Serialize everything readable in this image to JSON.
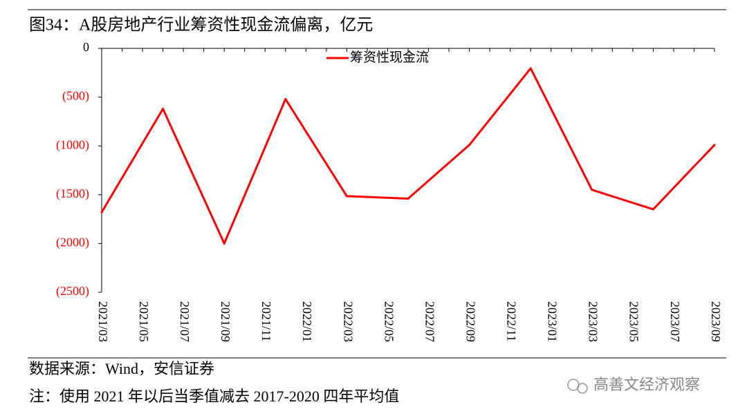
{
  "chart_data": {
    "type": "line",
    "title": "图34：A股房地产行业筹资性现金流偏离，亿元",
    "categories": [
      "2021/03",
      null,
      "2021/05",
      null,
      "2021/07",
      null,
      "2021/09",
      null,
      "2021/11",
      null,
      "2022/01",
      null,
      "2022/03",
      null,
      "2022/05",
      null,
      "2022/07",
      null,
      "2022/09",
      null,
      "2022/11",
      null,
      "2023/01",
      null,
      "2023/03",
      null,
      "2023/05",
      null,
      "2023/07",
      null,
      "2023/09"
    ],
    "series": [
      {
        "name": "筹资性现金流",
        "color": "#ff0000",
        "values": [
          -1680,
          null,
          null,
          -620,
          null,
          null,
          -2000,
          null,
          null,
          -520,
          null,
          null,
          -1515,
          null,
          null,
          -1540,
          null,
          null,
          -990,
          null,
          null,
          -205,
          null,
          null,
          -1450,
          null,
          null,
          -1650,
          null,
          null,
          -990
        ]
      }
    ],
    "ylim": [
      0,
      -2500
    ],
    "yticks": [
      0,
      {
        "value": -500,
        "label": "(500)"
      },
      {
        "value": -1000,
        "label": "(1000)"
      },
      {
        "value": -1500,
        "label": "(1500)"
      },
      {
        "value": -2000,
        "label": "(2000)"
      },
      {
        "value": -2500,
        "label": "(2500)"
      }
    ],
    "negative_tick_color": "#ff0000",
    "legend": "top",
    "grid": false,
    "source": "数据来源：Wind，安信证券",
    "note": "注：使用 2021 年以后当季值减去 2017-2020 四年平均值",
    "watermark": "高善文经济观察"
  }
}
